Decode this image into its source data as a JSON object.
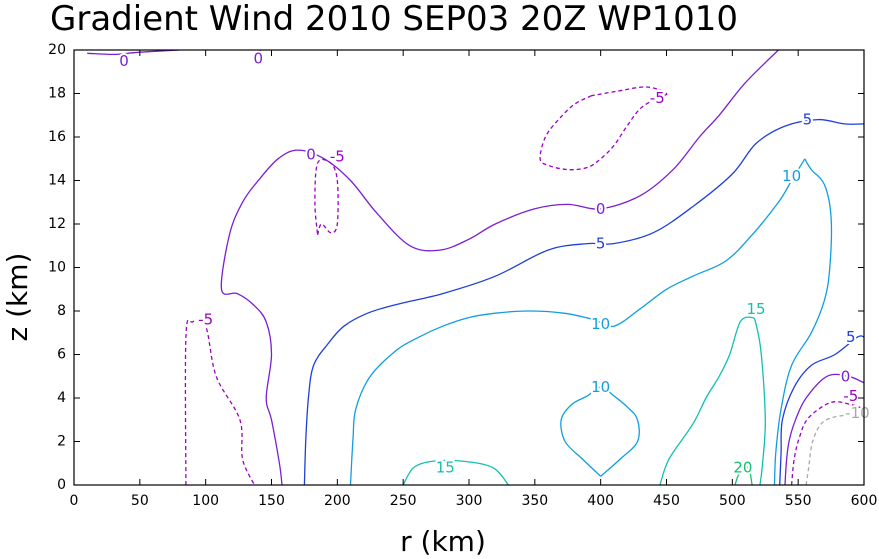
{
  "chart_data": {
    "type": "contour",
    "title": "Gradient Wind 2010 SEP03 20Z  WP1010",
    "xlabel": "r (km)",
    "ylabel": "z (km)",
    "xlim": [
      0,
      600
    ],
    "ylim": [
      0,
      20
    ],
    "x_ticks": [
      0,
      50,
      100,
      150,
      200,
      250,
      300,
      350,
      400,
      450,
      500,
      550,
      600
    ],
    "y_ticks": [
      0,
      2,
      4,
      6,
      8,
      10,
      12,
      14,
      16,
      18,
      20
    ],
    "grid": false,
    "levels": [
      {
        "value": -10,
        "color": "#a8a8a8",
        "dashed": true
      },
      {
        "value": -5,
        "color": "#9b00c8",
        "dashed": true
      },
      {
        "value": 0,
        "color": "#7a1fd2",
        "dashed": false
      },
      {
        "value": 5,
        "color": "#1f3fd8",
        "dashed": false
      },
      {
        "value": 10,
        "color": "#109ee0",
        "dashed": false
      },
      {
        "value": 15,
        "color": "#12c0b0",
        "dashed": false
      },
      {
        "value": 20,
        "color": "#12c070",
        "dashed": false
      }
    ],
    "contours": [
      {
        "level": 0,
        "points": [
          [
            10,
            19.85
          ],
          [
            30,
            19.8
          ],
          [
            50,
            19.9
          ],
          [
            80,
            20
          ]
        ]
      },
      {
        "level": 0,
        "points": [
          [
            138,
            19.9
          ],
          [
            142,
            20
          ]
        ]
      },
      {
        "level": 0,
        "points": [
          [
            158,
            0
          ],
          [
            156,
            1
          ],
          [
            150,
            3
          ],
          [
            146,
            4
          ],
          [
            150,
            6
          ],
          [
            146,
            7.5
          ],
          [
            136,
            8.3
          ],
          [
            124,
            8.8
          ],
          [
            112,
            9
          ],
          [
            118,
            11.5
          ],
          [
            128,
            13
          ],
          [
            140,
            14
          ],
          [
            155,
            15
          ],
          [
            170,
            15.4
          ],
          [
            190,
            15
          ],
          [
            210,
            14
          ],
          [
            230,
            12.5
          ],
          [
            255,
            11
          ],
          [
            278,
            10.8
          ],
          [
            300,
            11.3
          ],
          [
            320,
            12
          ],
          [
            350,
            12.7
          ],
          [
            375,
            12.9
          ],
          [
            400,
            12.7
          ],
          [
            430,
            13.3
          ],
          [
            455,
            14.5
          ],
          [
            475,
            16
          ],
          [
            490,
            17
          ],
          [
            510,
            18.5
          ],
          [
            535,
            20
          ]
        ]
      },
      {
        "level": 0,
        "points": [
          [
            540,
            0
          ],
          [
            541,
            1
          ],
          [
            543,
            2
          ],
          [
            548,
            3
          ],
          [
            556,
            4
          ],
          [
            572,
            5
          ],
          [
            588,
            5
          ],
          [
            600,
            4.7
          ]
        ]
      },
      {
        "level": -5,
        "points": [
          [
            185,
            11.5
          ],
          [
            188,
            12
          ],
          [
            195,
            11.6
          ],
          [
            200,
            12
          ],
          [
            200,
            14
          ],
          [
            195,
            14.8
          ],
          [
            185,
            14.8
          ],
          [
            183,
            13
          ],
          [
            185,
            11.5
          ]
        ]
      },
      {
        "level": -5,
        "points": [
          [
            85,
            0
          ],
          [
            85,
            6.8
          ],
          [
            90,
            7.5
          ],
          [
            100,
            7.3
          ],
          [
            108,
            5
          ],
          [
            126,
            3
          ],
          [
            128,
            1.2
          ],
          [
            137,
            0
          ]
        ]
      },
      {
        "level": -5,
        "points": [
          [
            393,
            17.9
          ],
          [
            380,
            17.5
          ],
          [
            368,
            16.8
          ],
          [
            358,
            16
          ],
          [
            354,
            15
          ],
          [
            360,
            14.7
          ],
          [
            375,
            14.5
          ],
          [
            390,
            14.6
          ],
          [
            400,
            15
          ],
          [
            410,
            15.6
          ],
          [
            420,
            16.5
          ],
          [
            430,
            17.3
          ],
          [
            443,
            17.8
          ],
          [
            450,
            18
          ],
          [
            435,
            18.3
          ],
          [
            412,
            18.1
          ],
          [
            393,
            17.9
          ]
        ]
      },
      {
        "level": -5,
        "points": [
          [
            545,
            0
          ],
          [
            547,
            1.2
          ],
          [
            551,
            2.2
          ],
          [
            558,
            3.1
          ],
          [
            575,
            3.8
          ],
          [
            590,
            3.7
          ],
          [
            600,
            3.5
          ]
        ]
      },
      {
        "level": -10,
        "points": [
          [
            556,
            0
          ],
          [
            558,
            0.8
          ],
          [
            561,
            2
          ],
          [
            569,
            2.9
          ],
          [
            585,
            3.2
          ],
          [
            600,
            3.1
          ]
        ]
      },
      {
        "level": 5,
        "points": [
          [
            175,
            0
          ],
          [
            176,
            2
          ],
          [
            178,
            4
          ],
          [
            182,
            5.5
          ],
          [
            193,
            6.5
          ],
          [
            205,
            7.3
          ],
          [
            223,
            7.9
          ],
          [
            245,
            8.3
          ],
          [
            280,
            8.8
          ],
          [
            320,
            9.6
          ],
          [
            360,
            10.8
          ],
          [
            390,
            11.1
          ],
          [
            410,
            11.1
          ],
          [
            440,
            11.6
          ],
          [
            470,
            12.8
          ],
          [
            500,
            14.3
          ],
          [
            518,
            15.7
          ],
          [
            540,
            16.5
          ],
          [
            565,
            16.8
          ],
          [
            585,
            16.6
          ],
          [
            600,
            16.6
          ]
        ]
      },
      {
        "level": 5,
        "points": [
          [
            536,
            0
          ],
          [
            537,
            1.5
          ],
          [
            538,
            3
          ],
          [
            547,
            4.5
          ],
          [
            560,
            5.5
          ],
          [
            578,
            6
          ],
          [
            595,
            6.8
          ],
          [
            600,
            6.8
          ]
        ]
      },
      {
        "level": 10,
        "points": [
          [
            210,
            0
          ],
          [
            211,
            1.2
          ],
          [
            212,
            2.2
          ],
          [
            214,
            3.5
          ],
          [
            225,
            5
          ],
          [
            245,
            6.2
          ],
          [
            262,
            6.8
          ],
          [
            280,
            7.3
          ],
          [
            300,
            7.7
          ],
          [
            320,
            7.9
          ],
          [
            345,
            8
          ],
          [
            372,
            7.9
          ],
          [
            395,
            7.6
          ],
          [
            410,
            7.3
          ],
          [
            430,
            8.1
          ],
          [
            450,
            9
          ],
          [
            470,
            9.6
          ],
          [
            495,
            10.3
          ],
          [
            515,
            11.5
          ],
          [
            535,
            13
          ],
          [
            545,
            14
          ],
          [
            555,
            15
          ]
        ]
      },
      {
        "level": 10,
        "points": [
          [
            532,
            0
          ],
          [
            533,
            1.5
          ],
          [
            537,
            3.5
          ],
          [
            545,
            5.5
          ],
          [
            560,
            7
          ],
          [
            570,
            8.5
          ],
          [
            574,
            10
          ],
          [
            575,
            12.3
          ],
          [
            570,
            13.8
          ],
          [
            560,
            14.5
          ],
          [
            555,
            15
          ]
        ]
      },
      {
        "level": 10,
        "points": [
          [
            400,
            0.4
          ],
          [
            386,
            1.2
          ],
          [
            373,
            2
          ],
          [
            370,
            3
          ],
          [
            378,
            3.7
          ],
          [
            390,
            4.1
          ],
          [
            400,
            4.5
          ],
          [
            410,
            4.1
          ],
          [
            420,
            3.6
          ],
          [
            428,
            3
          ],
          [
            428,
            2
          ],
          [
            415,
            1.2
          ],
          [
            400,
            0.4
          ]
        ]
      },
      {
        "level": 15,
        "points": [
          [
            250,
            0
          ],
          [
            258,
            0.8
          ],
          [
            273,
            1.1
          ],
          [
            295,
            1.1
          ],
          [
            318,
            0.8
          ],
          [
            330,
            0
          ]
        ]
      },
      {
        "level": 15,
        "points": [
          [
            445,
            0
          ],
          [
            452,
            1.2
          ],
          [
            470,
            2.8
          ],
          [
            480,
            4
          ],
          [
            490,
            5
          ],
          [
            498,
            6
          ],
          [
            506,
            7.5
          ],
          [
            515,
            7.7
          ],
          [
            518,
            7.4
          ],
          [
            522,
            6
          ],
          [
            525,
            3
          ],
          [
            523,
            1
          ],
          [
            521,
            0
          ]
        ]
      },
      {
        "level": 20,
        "points": [
          [
            502,
            0
          ],
          [
            505,
            0.5
          ],
          [
            510,
            0.8
          ],
          [
            513,
            0.7
          ],
          [
            515,
            0
          ]
        ]
      }
    ],
    "contour_labels": [
      {
        "text": "0",
        "x": 38,
        "y": 19.5,
        "level": 0
      },
      {
        "text": "0",
        "x": 140,
        "y": 19.6,
        "level": 0
      },
      {
        "text": "0",
        "x": 180,
        "y": 15.2,
        "level": 0
      },
      {
        "text": "0",
        "x": 400,
        "y": 12.7,
        "level": 0
      },
      {
        "text": "0",
        "x": 586,
        "y": 5,
        "level": 0
      },
      {
        "text": "-5",
        "x": 200,
        "y": 15.1,
        "level": -5
      },
      {
        "text": "-5",
        "x": 100,
        "y": 7.6,
        "level": -5
      },
      {
        "text": "-5",
        "x": 443,
        "y": 17.8,
        "level": -5
      },
      {
        "text": "-5",
        "x": 590,
        "y": 4.1,
        "level": -5
      },
      {
        "text": "-10",
        "x": 595,
        "y": 3.3,
        "level": -10
      },
      {
        "text": "5",
        "x": 400,
        "y": 11.1,
        "level": 5
      },
      {
        "text": "5",
        "x": 557,
        "y": 16.8,
        "level": 5
      },
      {
        "text": "5",
        "x": 590,
        "y": 6.8,
        "level": 5
      },
      {
        "text": "10",
        "x": 400,
        "y": 7.4,
        "level": 10
      },
      {
        "text": "10",
        "x": 545,
        "y": 14.2,
        "level": 10
      },
      {
        "text": "10",
        "x": 400,
        "y": 4.5,
        "level": 10
      },
      {
        "text": "15",
        "x": 282,
        "y": 0.8,
        "level": 15
      },
      {
        "text": "15",
        "x": 518,
        "y": 8.1,
        "level": 15
      },
      {
        "text": "20",
        "x": 508,
        "y": 0.8,
        "level": 20
      }
    ]
  }
}
